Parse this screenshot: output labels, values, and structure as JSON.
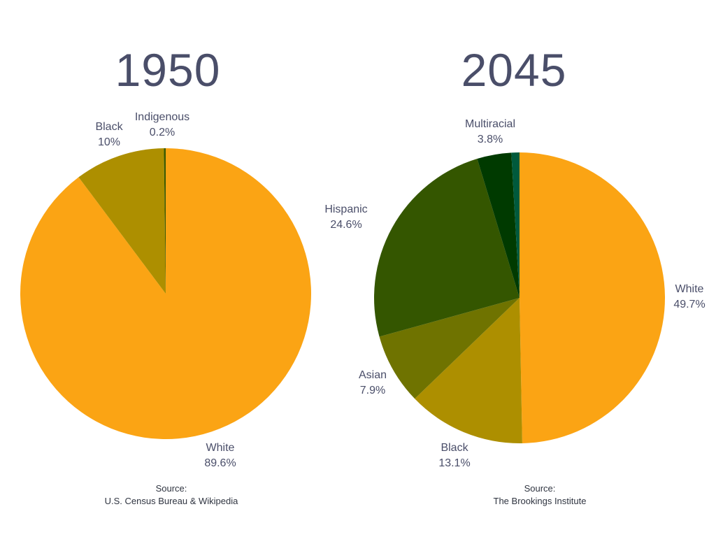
{
  "chart_data": [
    {
      "type": "pie",
      "title": "1950",
      "slices": [
        {
          "label": "White",
          "value": 89.6,
          "display": "89.6%",
          "color": "#fba414"
        },
        {
          "label": "Black",
          "value": 10,
          "display": "10%",
          "color": "#ad8f00"
        },
        {
          "label": "Indigenous",
          "value": 0.2,
          "display": "0.2%",
          "color": "#3b5a00"
        }
      ],
      "source_heading": "Source:",
      "source_text": "U.S. Census Bureau & Wikipedia"
    },
    {
      "type": "pie",
      "title": "2045",
      "slices": [
        {
          "label": "White",
          "value": 49.7,
          "display": "49.7%",
          "color": "#fba414"
        },
        {
          "label": "Black",
          "value": 13.1,
          "display": "13.1%",
          "color": "#ad8f00"
        },
        {
          "label": "Asian",
          "value": 7.9,
          "display": "7.9%",
          "color": "#6f7300"
        },
        {
          "label": "Hispanic",
          "value": 24.6,
          "display": "24.6%",
          "color": "#345600"
        },
        {
          "label": "Multiracial",
          "value": 3.8,
          "display": "3.8%",
          "color": "#003a00"
        },
        {
          "label": "",
          "value": 0.9,
          "display": "",
          "color": "#005a3c"
        }
      ],
      "source_heading": "Source:",
      "source_text": "The Brookings Institute"
    }
  ]
}
